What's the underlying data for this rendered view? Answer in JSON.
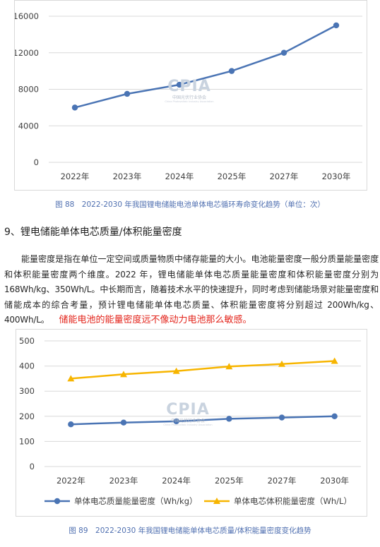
{
  "watermark": {
    "logo": "CPIA",
    "org_cn": "中国光伏行业协会",
    "org_en": "China Photovoltaic Industry Association"
  },
  "captions": {
    "fig88": "图 88　2022-2030 年我国锂电储能电池单体电芯循环寿命变化趋势（单位：次）",
    "fig89": "图 89　2022-2030 年我国锂电储能单体电芯质量/体积能量密度变化趋势"
  },
  "section": {
    "heading": "9、锂电储能单体电芯质量/体积能量密度",
    "paragraph": "能量密度是指在单位一定空间或质量物质中储存能量的大小。电池能量密度一般分质量能量密度和体积能量密度两个维度。2022 年，锂电储能单体电芯质量能量密度和体积能量密度分别为 168Wh/kg、350Wh/L。中长期而言，随着技术水平的快速提升，同时考虑到储能场景对能量密度和储能成本的综合考量，预计锂电储能单体电芯质量、体积能量密度将分别超过 200Wh/kg、400Wh/L。",
    "annotation": "储能电池的能量密度远不像动力电池那么敏感。",
    "annotation_color": "#e3241b"
  },
  "chart_data": [
    {
      "type": "line",
      "categories": [
        "2022年",
        "2023年",
        "2024年",
        "2025年",
        "2027年",
        "2030年"
      ],
      "series": [
        {
          "values": [
            6000,
            7500,
            8500,
            10000,
            12000,
            15000
          ],
          "color": "#4a74b4",
          "marker": "circle"
        }
      ],
      "ylim": [
        0,
        16000
      ],
      "yticks": [
        0,
        4000,
        8000,
        12000,
        16000
      ],
      "grid": true,
      "legend": "none"
    },
    {
      "type": "line",
      "categories": [
        "2022年",
        "2023年",
        "2024年",
        "2025年",
        "2027年",
        "2030年"
      ],
      "series": [
        {
          "name": "单体电芯质量能量密度（Wh/kg）",
          "values": [
            168,
            175,
            180,
            190,
            195,
            200
          ],
          "color": "#4a74b4",
          "marker": "circle"
        },
        {
          "name": "单体电芯体积能量密度（Wh/L）",
          "values": [
            350,
            367,
            380,
            398,
            408,
            420
          ],
          "color": "#f7b500",
          "marker": "triangle"
        }
      ],
      "ylim": [
        0,
        500
      ],
      "yticks": [
        0,
        100,
        200,
        300,
        400,
        500
      ],
      "grid": true,
      "legend": "bottom"
    }
  ]
}
